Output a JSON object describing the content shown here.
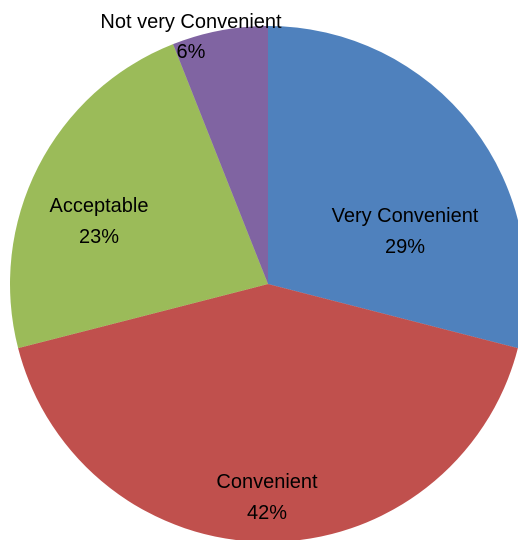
{
  "chart_data": {
    "type": "pie",
    "title": "",
    "slices": [
      {
        "label": "Very Convenient",
        "value": 29,
        "value_label": "29%",
        "color": "#4F81BD"
      },
      {
        "label": "Convenient",
        "value": 42,
        "value_label": "42%",
        "color": "#C0504D"
      },
      {
        "label": "Acceptable",
        "value": 23,
        "value_label": "23%",
        "color": "#9BBB59"
      },
      {
        "label": "Not very Convenient",
        "value": 6,
        "value_label": "6%",
        "color": "#8064A2"
      }
    ],
    "start_angle": "12 o'clock",
    "direction": "clockwise",
    "legend": "none",
    "label_placement": "inside"
  }
}
